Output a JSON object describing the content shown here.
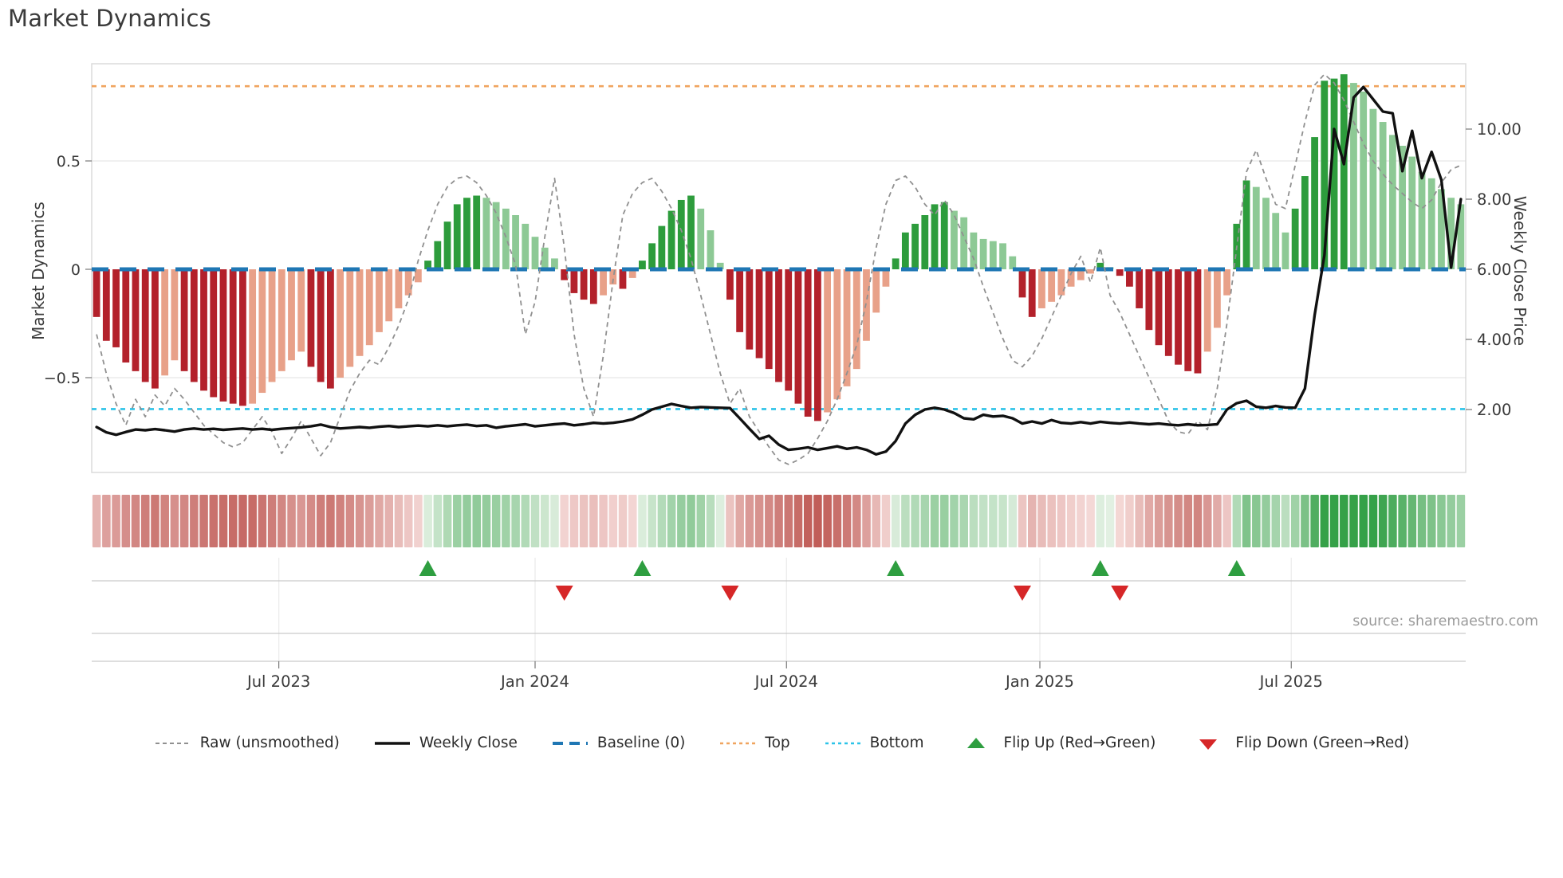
{
  "title": "Market Dynamics",
  "source": "source: sharemaestro.com",
  "colors": {
    "bar_up_strong": "#2d9c3c",
    "bar_up_weak": "#8dc995",
    "bar_dn_strong": "#b3212b",
    "bar_dn_weak": "#e8a189",
    "baseline": "#1f77b4",
    "top_line": "#f0a45f",
    "bottom_line": "#2cc3e8",
    "raw_line": "#909090",
    "price_line": "#111111",
    "flip_up": "#2e9e40",
    "flip_down": "#d62728",
    "heat_pos_lo": "#e4f1e4",
    "heat_pos_hi": "#35a148",
    "heat_neg_lo": "#f6dcda",
    "heat_neg_hi": "#bf5a55",
    "grid": "#ebebeb",
    "frame": "#d8d8d8",
    "tick_text": "#3a3a3a",
    "panel_line": "#c9c9c9",
    "panel_grid": "#ededed"
  },
  "chart_data": {
    "type": "bar+line",
    "title": "Market Dynamics",
    "ylabel_left": "Market Dynamics",
    "ylabel_right": "Weekly Close Price",
    "baseline_value": 0,
    "top_value": 0.845,
    "bottom_value": -0.645,
    "ylim_left": [
      -0.95,
      0.95
    ],
    "y_ticks_left": [
      {
        "v": 0.5,
        "label": "0.5"
      },
      {
        "v": 0,
        "label": "0"
      },
      {
        "v": -0.5,
        "label": "−0.5"
      }
    ],
    "y_ticks_right": [
      {
        "v": 10,
        "label": "10.00"
      },
      {
        "v": 8,
        "label": "8.00"
      },
      {
        "v": 6,
        "label": "6.00"
      },
      {
        "v": 4,
        "label": "4.00"
      },
      {
        "v": 2,
        "label": "2.00"
      }
    ],
    "x_ticks": [
      {
        "week": 19.2,
        "label": "Jul 2023"
      },
      {
        "week": 45.5,
        "label": "Jan 2024"
      },
      {
        "week": 71.3,
        "label": "Jul 2024"
      },
      {
        "week": 97.3,
        "label": "Jan 2025"
      },
      {
        "week": 123.1,
        "label": "Jul 2025"
      }
    ],
    "n_weeks": 141,
    "oscillator": [
      -0.22,
      -0.33,
      -0.36,
      -0.43,
      -0.47,
      -0.52,
      -0.55,
      -0.49,
      -0.42,
      -0.47,
      -0.52,
      -0.56,
      -0.59,
      -0.61,
      -0.62,
      -0.63,
      -0.62,
      -0.57,
      -0.52,
      -0.47,
      -0.42,
      -0.38,
      -0.45,
      -0.52,
      -0.55,
      -0.5,
      -0.45,
      -0.4,
      -0.35,
      -0.29,
      -0.24,
      -0.18,
      -0.12,
      -0.06,
      0.04,
      0.13,
      0.22,
      0.3,
      0.33,
      0.34,
      0.33,
      0.31,
      0.28,
      0.25,
      0.21,
      0.15,
      0.1,
      0.05,
      -0.05,
      -0.11,
      -0.14,
      -0.16,
      -0.12,
      -0.07,
      -0.09,
      -0.04,
      0.04,
      0.12,
      0.2,
      0.27,
      0.32,
      0.34,
      0.28,
      0.18,
      0.03,
      -0.14,
      -0.29,
      -0.37,
      -0.41,
      -0.46,
      -0.52,
      -0.56,
      -0.62,
      -0.68,
      -0.7,
      -0.66,
      -0.6,
      -0.54,
      -0.46,
      -0.33,
      -0.2,
      -0.08,
      0.05,
      0.17,
      0.21,
      0.25,
      0.3,
      0.31,
      0.27,
      0.24,
      0.17,
      0.14,
      0.13,
      0.12,
      0.06,
      -0.13,
      -0.22,
      -0.18,
      -0.15,
      -0.12,
      -0.08,
      -0.05,
      -0.02,
      0.03,
      0.01,
      -0.03,
      -0.08,
      -0.18,
      -0.28,
      -0.35,
      -0.4,
      -0.44,
      -0.47,
      -0.48,
      -0.38,
      -0.27,
      -0.12,
      0.21,
      0.41,
      0.38,
      0.33,
      0.26,
      0.17,
      0.28,
      0.43,
      0.61,
      0.87,
      0.88,
      0.9,
      0.86,
      0.82,
      0.74,
      0.68,
      0.62,
      0.57,
      0.52,
      0.45,
      0.42,
      0.37,
      0.33,
      0.3
    ],
    "raw": [
      -0.3,
      -0.48,
      -0.62,
      -0.72,
      -0.6,
      -0.68,
      -0.58,
      -0.63,
      -0.55,
      -0.6,
      -0.66,
      -0.72,
      -0.76,
      -0.8,
      -0.82,
      -0.8,
      -0.74,
      -0.68,
      -0.75,
      -0.85,
      -0.78,
      -0.7,
      -0.78,
      -0.86,
      -0.8,
      -0.68,
      -0.56,
      -0.48,
      -0.42,
      -0.44,
      -0.36,
      -0.26,
      -0.14,
      0.04,
      0.18,
      0.3,
      0.38,
      0.42,
      0.43,
      0.4,
      0.34,
      0.26,
      0.15,
      0.02,
      -0.3,
      -0.15,
      0.15,
      0.42,
      0.1,
      -0.3,
      -0.55,
      -0.68,
      -0.4,
      -0.05,
      0.25,
      0.35,
      0.4,
      0.42,
      0.36,
      0.28,
      0.18,
      0.05,
      -0.12,
      -0.3,
      -0.48,
      -0.62,
      -0.55,
      -0.68,
      -0.75,
      -0.82,
      -0.88,
      -0.9,
      -0.88,
      -0.85,
      -0.78,
      -0.7,
      -0.6,
      -0.48,
      -0.35,
      -0.15,
      0.1,
      0.3,
      0.41,
      0.43,
      0.38,
      0.3,
      0.25,
      0.32,
      0.25,
      0.15,
      0.05,
      -0.08,
      -0.2,
      -0.32,
      -0.42,
      -0.45,
      -0.4,
      -0.32,
      -0.22,
      -0.12,
      -0.02,
      0.06,
      -0.06,
      0.1,
      -0.12,
      -0.2,
      -0.3,
      -0.4,
      -0.5,
      -0.6,
      -0.7,
      -0.75,
      -0.76,
      -0.7,
      -0.74,
      -0.55,
      -0.25,
      0.1,
      0.45,
      0.55,
      0.42,
      0.3,
      0.28,
      0.48,
      0.68,
      0.85,
      0.9,
      0.86,
      0.78,
      0.68,
      0.58,
      0.5,
      0.44,
      0.39,
      0.35,
      0.31,
      0.28,
      0.32,
      0.4,
      0.46,
      0.48
    ],
    "price": [
      1.5,
      1.35,
      1.28,
      1.36,
      1.43,
      1.41,
      1.44,
      1.41,
      1.37,
      1.43,
      1.46,
      1.43,
      1.45,
      1.42,
      1.44,
      1.46,
      1.43,
      1.45,
      1.42,
      1.45,
      1.47,
      1.49,
      1.52,
      1.57,
      1.5,
      1.46,
      1.48,
      1.5,
      1.48,
      1.51,
      1.53,
      1.5,
      1.52,
      1.54,
      1.52,
      1.55,
      1.52,
      1.55,
      1.57,
      1.53,
      1.55,
      1.48,
      1.52,
      1.55,
      1.58,
      1.52,
      1.55,
      1.58,
      1.6,
      1.55,
      1.58,
      1.62,
      1.6,
      1.62,
      1.66,
      1.72,
      1.85,
      2.0,
      2.08,
      2.16,
      2.1,
      2.05,
      2.07,
      2.06,
      2.05,
      2.04,
      1.75,
      1.45,
      1.16,
      1.25,
      1.0,
      0.85,
      0.88,
      0.92,
      0.85,
      0.9,
      0.95,
      0.88,
      0.92,
      0.85,
      0.72,
      0.8,
      1.1,
      1.6,
      1.85,
      2.0,
      2.05,
      2.0,
      1.9,
      1.75,
      1.72,
      1.85,
      1.8,
      1.82,
      1.75,
      1.6,
      1.66,
      1.6,
      1.7,
      1.62,
      1.6,
      1.64,
      1.6,
      1.65,
      1.62,
      1.6,
      1.63,
      1.6,
      1.58,
      1.6,
      1.57,
      1.55,
      1.58,
      1.55,
      1.56,
      1.58,
      2.0,
      2.18,
      2.25,
      2.08,
      2.05,
      2.1,
      2.06,
      2.05,
      2.6,
      4.7,
      6.4,
      10.0,
      9.0,
      10.9,
      11.2,
      10.85,
      10.5,
      10.45,
      8.8,
      9.95,
      8.6,
      9.35,
      8.55,
      6.05,
      8.0
    ],
    "flip_up_weeks": [
      34,
      56,
      82,
      103,
      117
    ],
    "flip_down_weeks": [
      48,
      65,
      95,
      105
    ],
    "legend": [
      {
        "id": "raw",
        "label": "Raw (unsmoothed)",
        "swatch": "dash-gray"
      },
      {
        "id": "weekly-close",
        "label": "Weekly Close",
        "swatch": "solid-black"
      },
      {
        "id": "baseline",
        "label": "Baseline (0)",
        "swatch": "dash-blue"
      },
      {
        "id": "top",
        "label": "Top",
        "swatch": "dot-orange"
      },
      {
        "id": "bottom",
        "label": "Bottom",
        "swatch": "dot-cyan"
      },
      {
        "id": "flip-up",
        "label": "Flip Up (Red→Green)",
        "swatch": "tri-up"
      },
      {
        "id": "flip-down",
        "label": "Flip Down (Green→Red)",
        "swatch": "tri-down"
      }
    ]
  }
}
